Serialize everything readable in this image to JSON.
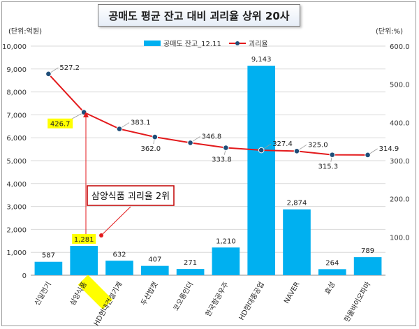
{
  "chart_data": {
    "type": "bar",
    "title": "공매도 평균 잔고 대비 괴리율 상위 20사",
    "left_unit": "(단위:억원)",
    "right_unit": "(단위:%)",
    "categories": [
      "신일전기",
      "삼양식품",
      "HD현대건설기계",
      "두산밥캣",
      "코오롱인더",
      "한국항공우주",
      "HD현대중공업",
      "NAVER",
      "효성",
      "한올바이오파마"
    ],
    "series": [
      {
        "name": "공매도 잔고_12.11",
        "kind": "bar",
        "axis": "left",
        "color": "#00b0f0",
        "values": [
          587,
          1281,
          632,
          407,
          271,
          1210,
          9143,
          2874,
          264,
          789
        ],
        "labels": [
          "587",
          "1,281",
          "632",
          "407",
          "271",
          "1,210",
          "9,143",
          "2,874",
          "264",
          "789"
        ]
      },
      {
        "name": "괴리율",
        "kind": "line",
        "axis": "right",
        "color": "#e31a1c",
        "values": [
          527.2,
          426.7,
          383.1,
          362.0,
          346.8,
          333.8,
          327.4,
          325.0,
          315.3,
          314.9
        ],
        "labels": [
          "527.2",
          "426.7",
          "383.1",
          "362.0",
          "346.8",
          "333.8",
          "327.4",
          "325.0",
          "315.3",
          "314.9"
        ]
      }
    ],
    "ylim_left": [
      0,
      10000
    ],
    "yticks_left": [
      "0",
      "1,000",
      "2,000",
      "3,000",
      "4,000",
      "5,000",
      "6,000",
      "7,000",
      "8,000",
      "9,000",
      "10,000"
    ],
    "ylim_right": [
      0,
      600
    ],
    "yticks_right": [
      "",
      "100.0",
      "200.0",
      "300.0",
      "400.0",
      "500.0",
      "600.0"
    ],
    "highlight_color": "#ffff00",
    "annotation": "삼양식품 괴리율 2위",
    "legend_position": "top"
  }
}
